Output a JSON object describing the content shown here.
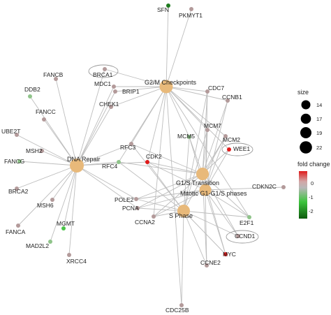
{
  "colors": {
    "edge": "#bdbdbd",
    "hub": "#e8b97a",
    "neutral": "#b39a9a",
    "green_light": "#8fc48a",
    "green_mid": "#4cc44a",
    "green_dark": "#1e7a1e",
    "red": "#e01b1b",
    "highlight_ring": "#9a9a9a"
  },
  "hubs": [
    {
      "id": "g2m",
      "label": "G2/M Checkpoints"
    },
    {
      "id": "dna",
      "label": "DNA Repair"
    },
    {
      "id": "g1s",
      "label": "G1/S Transition"
    },
    {
      "id": "mit",
      "label": "Mitotic G1-G1/S phases"
    },
    {
      "id": "sph",
      "label": "S Phase"
    }
  ],
  "genes": [
    {
      "id": "SFN",
      "label": "SFN",
      "fill": "green_dark"
    },
    {
      "id": "PKMYT1",
      "label": "PKMYT1",
      "fill": "neutral"
    },
    {
      "id": "BRCA1",
      "label": "BRCA1",
      "fill": "neutral",
      "highlighted": true
    },
    {
      "id": "FANCB",
      "label": "FANCB",
      "fill": "neutral"
    },
    {
      "id": "MDC1",
      "label": "MDC1",
      "fill": "neutral"
    },
    {
      "id": "BRIP1",
      "label": "BRIP1",
      "fill": "neutral"
    },
    {
      "id": "DDB2",
      "label": "DDB2",
      "fill": "green_light"
    },
    {
      "id": "CHEK1",
      "label": "CHEK1",
      "fill": "neutral"
    },
    {
      "id": "CDC7",
      "label": "CDC7",
      "fill": "neutral"
    },
    {
      "id": "CCNB1",
      "label": "CCNB1",
      "fill": "neutral"
    },
    {
      "id": "FANCC",
      "label": "FANCC",
      "fill": "neutral"
    },
    {
      "id": "UBE2T",
      "label": "UBE2T",
      "fill": "neutral"
    },
    {
      "id": "MCM7",
      "label": "MCM7",
      "fill": "neutral"
    },
    {
      "id": "MCM5",
      "label": "MCM5",
      "fill": "green_light"
    },
    {
      "id": "MCM2",
      "label": "MCM2",
      "fill": "neutral"
    },
    {
      "id": "WEE1",
      "label": "WEE1",
      "fill": "red",
      "highlighted": true
    },
    {
      "id": "MSH2",
      "label": "MSH2",
      "fill": "neutral"
    },
    {
      "id": "FANCG",
      "label": "FANCG",
      "fill": "green_light"
    },
    {
      "id": "RFC3",
      "label": "RFC3",
      "fill": "neutral"
    },
    {
      "id": "CDK2",
      "label": "CDK2",
      "fill": "red"
    },
    {
      "id": "RFC4",
      "label": "RFC4",
      "fill": "green_light"
    },
    {
      "id": "CDKN2C",
      "label": "CDKN2C",
      "fill": "neutral"
    },
    {
      "id": "BRCA2",
      "label": "BRCA2",
      "fill": "neutral"
    },
    {
      "id": "MSH6",
      "label": "MSH6",
      "fill": "neutral"
    },
    {
      "id": "POLE2",
      "label": "POLE2",
      "fill": "neutral"
    },
    {
      "id": "PCNA",
      "label": "PCNA",
      "fill": "neutral"
    },
    {
      "id": "CCNA2",
      "label": "CCNA2",
      "fill": "neutral"
    },
    {
      "id": "E2F1",
      "label": "E2F1",
      "fill": "green_light"
    },
    {
      "id": "FANCA",
      "label": "FANCA",
      "fill": "neutral"
    },
    {
      "id": "MGMT",
      "label": "MGMT",
      "fill": "green_mid"
    },
    {
      "id": "CCND1",
      "label": "CCND1",
      "fill": "neutral",
      "highlighted": true
    },
    {
      "id": "MAD2L2",
      "label": "MAD2L2",
      "fill": "green_light"
    },
    {
      "id": "MYC",
      "label": "MYC",
      "fill": "red"
    },
    {
      "id": "XRCC4",
      "label": "XRCC4",
      "fill": "neutral"
    },
    {
      "id": "CCNE2",
      "label": "CCNE2",
      "fill": "neutral"
    },
    {
      "id": "CDC25B",
      "label": "CDC25B",
      "fill": "neutral"
    }
  ],
  "edges": [
    [
      "g2m",
      "SFN"
    ],
    [
      "g2m",
      "PKMYT1"
    ],
    [
      "g2m",
      "BRCA1"
    ],
    [
      "g2m",
      "MDC1"
    ],
    [
      "g2m",
      "BRIP1"
    ],
    [
      "g2m",
      "CHEK1"
    ],
    [
      "g2m",
      "CDC7"
    ],
    [
      "g2m",
      "CCNB1"
    ],
    [
      "g2m",
      "MCM7"
    ],
    [
      "g2m",
      "MCM5"
    ],
    [
      "g2m",
      "MCM2"
    ],
    [
      "g2m",
      "WEE1"
    ],
    [
      "g2m",
      "CDK2"
    ],
    [
      "g2m",
      "RFC3"
    ],
    [
      "g2m",
      "RFC4"
    ],
    [
      "g2m",
      "CCNA2"
    ],
    [
      "g2m",
      "E2F1"
    ],
    [
      "g2m",
      "CDC25B"
    ],
    [
      "dna",
      "BRCA1"
    ],
    [
      "dna",
      "FANCB"
    ],
    [
      "dna",
      "MDC1"
    ],
    [
      "dna",
      "BRIP1"
    ],
    [
      "dna",
      "DDB2"
    ],
    [
      "dna",
      "CHEK1"
    ],
    [
      "dna",
      "FANCC"
    ],
    [
      "dna",
      "UBE2T"
    ],
    [
      "dna",
      "MSH2"
    ],
    [
      "dna",
      "FANCG"
    ],
    [
      "dna",
      "RFC3"
    ],
    [
      "dna",
      "RFC4"
    ],
    [
      "dna",
      "BRCA2"
    ],
    [
      "dna",
      "MSH6"
    ],
    [
      "dna",
      "POLE2"
    ],
    [
      "dna",
      "PCNA"
    ],
    [
      "dna",
      "FANCA"
    ],
    [
      "dna",
      "MGMT"
    ],
    [
      "dna",
      "MAD2L2"
    ],
    [
      "dna",
      "XRCC4"
    ],
    [
      "dna",
      "CDK2"
    ],
    [
      "g1s",
      "CDK2"
    ],
    [
      "g1s",
      "MCM7"
    ],
    [
      "g1s",
      "MCM5"
    ],
    [
      "g1s",
      "MCM2"
    ],
    [
      "g1s",
      "CDC7"
    ],
    [
      "g1s",
      "CCNB1"
    ],
    [
      "g1s",
      "WEE1"
    ],
    [
      "g1s",
      "POLE2"
    ],
    [
      "g1s",
      "PCNA"
    ],
    [
      "g1s",
      "CCNA2"
    ],
    [
      "g1s",
      "CCND1"
    ],
    [
      "g1s",
      "CCNE2"
    ],
    [
      "g1s",
      "E2F1"
    ],
    [
      "g1s",
      "MYC"
    ],
    [
      "g1s",
      "RFC4"
    ],
    [
      "g1s",
      "RFC3"
    ],
    [
      "mit",
      "CDKN2C"
    ],
    [
      "mit",
      "CDK2"
    ],
    [
      "mit",
      "MCM7"
    ],
    [
      "mit",
      "MCM5"
    ],
    [
      "mit",
      "MCM2"
    ],
    [
      "mit",
      "CDC7"
    ],
    [
      "mit",
      "CCNB1"
    ],
    [
      "mit",
      "WEE1"
    ],
    [
      "mit",
      "E2F1"
    ],
    [
      "mit",
      "CCND1"
    ],
    [
      "mit",
      "MYC"
    ],
    [
      "mit",
      "CCNA2"
    ],
    [
      "mit",
      "CCNE2"
    ],
    [
      "mit",
      "PCNA"
    ],
    [
      "mit",
      "POLE2"
    ],
    [
      "sph",
      "CDK2"
    ],
    [
      "sph",
      "MCM7"
    ],
    [
      "sph",
      "MCM5"
    ],
    [
      "sph",
      "MCM2"
    ],
    [
      "sph",
      "POLE2"
    ],
    [
      "sph",
      "PCNA"
    ],
    [
      "sph",
      "CCNA2"
    ],
    [
      "sph",
      "E2F1"
    ],
    [
      "sph",
      "CCND1"
    ],
    [
      "sph",
      "MYC"
    ],
    [
      "sph",
      "CCNE2"
    ],
    [
      "sph",
      "RFC3"
    ],
    [
      "sph",
      "RFC4"
    ],
    [
      "sph",
      "CDC25B"
    ],
    [
      "sph",
      "CDC7"
    ]
  ],
  "legend": {
    "size_title": "size",
    "size_values": [
      "14",
      "17",
      "19",
      "22"
    ],
    "color_title": "fold change",
    "color_ticks": [
      "0",
      "-1",
      "-2"
    ]
  }
}
